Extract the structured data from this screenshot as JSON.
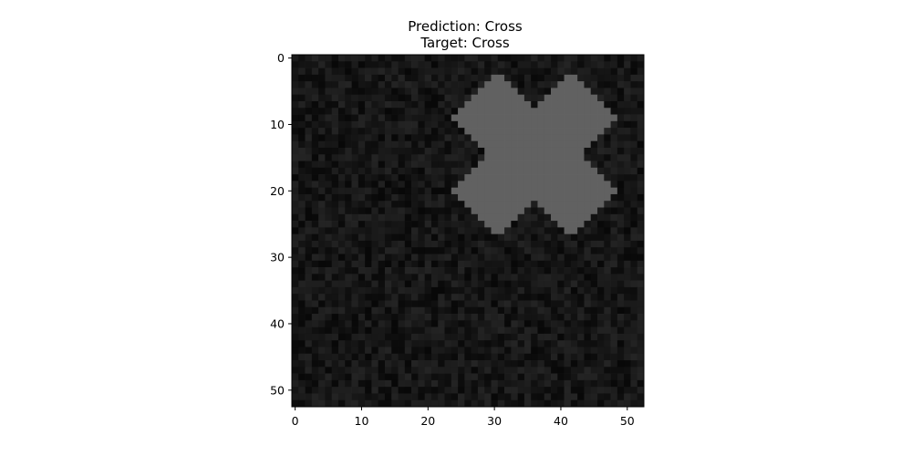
{
  "chart_data": {
    "type": "heatmap",
    "title_lines": [
      "Prediction: Cross",
      "Target: Cross"
    ],
    "xlabel": "",
    "ylabel": "",
    "grid": false,
    "image": {
      "rows": 53,
      "cols": 53,
      "colormap": "gray",
      "background_level": 0.12,
      "noise_level": 0.07,
      "shape_level": 0.38,
      "shape": "cross",
      "shape_center": [
        36,
        14.5
      ],
      "shape_arm_half_length": 12.5,
      "shape_arm_half_width": 4.6
    },
    "xlim": [
      -0.5,
      52.5
    ],
    "ylim": [
      52.5,
      -0.5
    ],
    "x_ticks": [
      0,
      10,
      20,
      30,
      40,
      50
    ],
    "y_ticks": [
      0,
      10,
      20,
      30,
      40,
      50
    ],
    "x_tick_labels": [
      "0",
      "10",
      "20",
      "30",
      "40",
      "50"
    ],
    "y_tick_labels": [
      "0",
      "10",
      "20",
      "30",
      "40",
      "50"
    ]
  }
}
